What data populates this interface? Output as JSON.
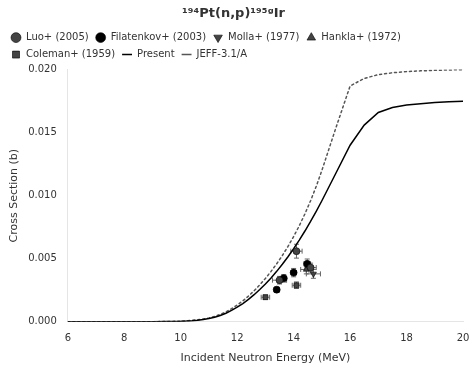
{
  "chart_data": {
    "type": "scatter",
    "title": "¹⁹⁴Pt(n,p)¹⁹⁵ᵍIr",
    "x_label": "Incident Neutron Energy (MeV)",
    "y_label": "Cross Section (b)",
    "xlim": [
      6,
      20
    ],
    "ylim": [
      0,
      0.02
    ],
    "xticks": [
      6,
      8,
      10,
      12,
      14,
      16,
      18,
      20
    ],
    "yticks": [
      {
        "value": 0,
        "label": "0.000"
      },
      0.005,
      {
        "value": 0.01,
        "label": "0.010"
      },
      0.015,
      {
        "value": 0.02,
        "label": "0.020"
      }
    ],
    "grid": false,
    "legend": "upper left",
    "series": [
      {
        "name": "Present",
        "type": "line",
        "color": "#000000",
        "line_style": "solid",
        "x": [
          6.0,
          6.5,
          7.0,
          7.5,
          8.0,
          8.5,
          9.0,
          9.5,
          10.0,
          10.2,
          10.4,
          10.6,
          10.8,
          11.0,
          11.2,
          11.4,
          11.6,
          11.8,
          12.0,
          12.2,
          12.4,
          12.6,
          12.8,
          13.0,
          13.2,
          13.4,
          13.6,
          13.8,
          14.0,
          14.2,
          14.4,
          14.6,
          14.8,
          15.0,
          15.5,
          16.0,
          16.5,
          17.0,
          17.5,
          18.0,
          18.5,
          19.0,
          19.5,
          20.0
        ],
        "values": [
          0.0,
          0.0,
          0.0,
          0.0,
          0.0,
          0.0,
          1e-05,
          2e-05,
          4e-05,
          6e-05,
          9e-05,
          0.00013,
          0.00018,
          0.00026,
          0.00036,
          0.0005,
          0.00068,
          0.0009,
          0.00116,
          0.00145,
          0.00178,
          0.00215,
          0.00256,
          0.003,
          0.00348,
          0.004,
          0.00456,
          0.00516,
          0.0058,
          0.00648,
          0.0072,
          0.00796,
          0.00876,
          0.0096,
          0.0118,
          0.014,
          0.0156,
          0.0166,
          0.017,
          0.0172,
          0.0173,
          0.0174,
          0.01745,
          0.0175
        ]
      },
      {
        "name": "JEFF-3.1/A",
        "type": "line",
        "color": "#555555",
        "line_style": "dotted",
        "x": [
          6.0,
          6.5,
          7.0,
          7.5,
          8.0,
          8.5,
          9.0,
          9.5,
          10.0,
          10.2,
          10.4,
          10.6,
          10.8,
          11.0,
          11.2,
          11.4,
          11.6,
          11.8,
          12.0,
          12.2,
          12.4,
          12.6,
          12.8,
          13.0,
          13.2,
          13.4,
          13.6,
          13.8,
          14.0,
          14.2,
          14.4,
          14.6,
          14.8,
          15.0,
          15.5,
          16.0,
          16.5,
          17.0,
          17.5,
          18.0,
          18.5,
          19.0,
          19.5,
          20.0
        ],
        "values": [
          0.0,
          0.0,
          0.0,
          0.0,
          0.0,
          0.0,
          1e-05,
          2e-05,
          5e-05,
          7e-05,
          0.00011,
          0.00016,
          0.00022,
          0.00031,
          0.00043,
          0.00059,
          0.00079,
          0.00104,
          0.00133,
          0.00166,
          0.00204,
          0.00246,
          0.00293,
          0.00344,
          0.004,
          0.0046,
          0.00526,
          0.00598,
          0.00676,
          0.00762,
          0.00856,
          0.0096,
          0.01074,
          0.012,
          0.0154,
          0.0187,
          0.0193,
          0.0196,
          0.01975,
          0.01984,
          0.0199,
          0.01994,
          0.01997,
          0.02
        ]
      },
      {
        "name": "Luo+ (2005)",
        "type": "scatter",
        "marker": "circle",
        "color": "#444444",
        "x": [
          13.5,
          14.1,
          14.6
        ],
        "values": [
          0.0033,
          0.0056,
          0.0043
        ],
        "xerr": [
          0.25,
          0.2,
          0.2
        ],
        "yerr": [
          0.0003,
          0.00055,
          0.00035
        ]
      },
      {
        "name": "Filatenkov+ (2003)",
        "type": "scatter",
        "marker": "circle",
        "color": "#000000",
        "x": [
          13.4,
          13.65,
          14.0,
          14.48
        ],
        "values": [
          0.00255,
          0.00345,
          0.0039,
          0.0046
        ],
        "xerr": [
          0.1,
          0.1,
          0.1,
          0.12
        ],
        "yerr": [
          0.00022,
          0.0003,
          0.00033,
          0.00038
        ]
      },
      {
        "name": "Molla+ (1977)",
        "type": "scatter",
        "marker": "triangle_down",
        "color": "#444444",
        "x": [
          14.7
        ],
        "values": [
          0.0038
        ],
        "xerr": [
          0.25
        ],
        "yerr": [
          0.00035
        ]
      },
      {
        "name": "Hankla+ (1972)",
        "type": "scatter",
        "marker": "triangle_up",
        "color": "#444444",
        "x": [
          14.45
        ],
        "values": [
          0.00415
        ],
        "xerr": [
          0.2
        ],
        "yerr": [
          0.00035
        ]
      },
      {
        "name": "Coleman+ (1959)",
        "type": "scatter",
        "marker": "square",
        "color": "#444444",
        "x": [
          13.0,
          14.1
        ],
        "values": [
          0.00195,
          0.0029
        ],
        "xerr": [
          0.15,
          0.15
        ],
        "yerr": [
          0.00018,
          0.00026
        ]
      }
    ]
  }
}
